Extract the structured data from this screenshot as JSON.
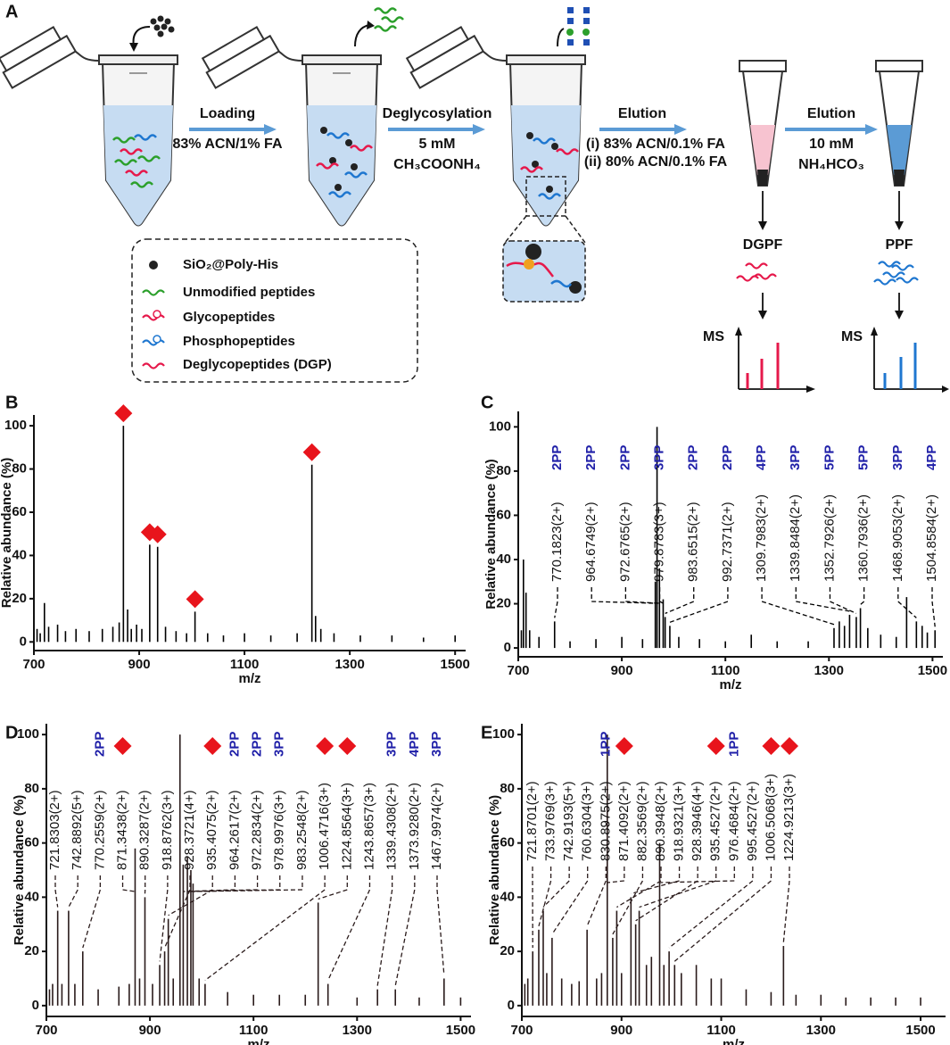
{
  "panel_a": {
    "label": "A",
    "steps": [
      {
        "title": "Loading",
        "lines": [
          "83% ACN/1% FA"
        ]
      },
      {
        "title": "Deglycosylation",
        "lines": [
          "5 mM",
          "CH₃COONH₄"
        ]
      },
      {
        "title": "Elution",
        "lines": [
          "(i) 83% ACN/0.1% FA",
          "(ii) 80% ACN/0.1% FA"
        ]
      },
      {
        "title": "Elution",
        "lines": [
          "10 mM",
          "NH₄HCO₃"
        ]
      }
    ],
    "outputs": [
      {
        "name": "DGPF",
        "axis": "MS"
      },
      {
        "name": "PPF",
        "axis": "MS"
      }
    ],
    "legend": [
      "SiO₂@Poly-His",
      "Unmodified peptides",
      "Glycopeptides",
      "Phosphopeptides",
      "Deglycopeptides (DGP)"
    ]
  },
  "chart_data": [
    {
      "type": "stem",
      "panel": "B",
      "xlabel": "m/z",
      "ylabel": "Relative abundance (%)",
      "xlim": [
        700,
        1520
      ],
      "ylim": [
        -4,
        105
      ],
      "xticks": [
        700,
        900,
        1100,
        1300,
        1500
      ],
      "yticks": [
        0,
        20,
        40,
        60,
        80,
        100
      ],
      "color": "#000000",
      "marker_color": "#e8141c",
      "tag_color": "#1f1fa8",
      "peaks": [
        {
          "x": 706,
          "value": 6
        },
        {
          "x": 712,
          "value": 4
        },
        {
          "x": 720,
          "value": 18
        },
        {
          "x": 728,
          "value": 7
        },
        {
          "x": 745,
          "value": 8
        },
        {
          "x": 760,
          "value": 5
        },
        {
          "x": 780,
          "value": 6
        },
        {
          "x": 805,
          "value": 5
        },
        {
          "x": 830,
          "value": 6
        },
        {
          "x": 850,
          "value": 7
        },
        {
          "x": 862,
          "value": 9
        },
        {
          "x": 870,
          "value": 100,
          "marker": "diamond"
        },
        {
          "x": 878,
          "value": 15
        },
        {
          "x": 885,
          "value": 6
        },
        {
          "x": 895,
          "value": 8
        },
        {
          "x": 905,
          "value": 6
        },
        {
          "x": 920,
          "value": 45,
          "marker": "diamond"
        },
        {
          "x": 935,
          "value": 44,
          "marker": "diamond"
        },
        {
          "x": 950,
          "value": 7
        },
        {
          "x": 970,
          "value": 5
        },
        {
          "x": 990,
          "value": 4
        },
        {
          "x": 1006,
          "value": 14,
          "marker": "diamond"
        },
        {
          "x": 1030,
          "value": 4
        },
        {
          "x": 1060,
          "value": 3
        },
        {
          "x": 1100,
          "value": 4
        },
        {
          "x": 1150,
          "value": 3
        },
        {
          "x": 1200,
          "value": 4
        },
        {
          "x": 1228,
          "value": 82,
          "marker": "diamond"
        },
        {
          "x": 1235,
          "value": 12
        },
        {
          "x": 1245,
          "value": 6
        },
        {
          "x": 1270,
          "value": 4
        },
        {
          "x": 1320,
          "value": 3
        },
        {
          "x": 1380,
          "value": 3
        },
        {
          "x": 1440,
          "value": 2
        },
        {
          "x": 1500,
          "value": 3
        }
      ]
    },
    {
      "type": "stem",
      "panel": "C",
      "xlabel": "m/z",
      "ylabel": "Relative abundance (%)",
      "xlim": [
        700,
        1520
      ],
      "ylim": [
        -4,
        107
      ],
      "xticks": [
        700,
        900,
        1100,
        1300,
        1500
      ],
      "yticks": [
        0,
        20,
        40,
        60,
        80,
        100
      ],
      "color": "#000000",
      "marker_color": "#e8141c",
      "tag_color": "#1f1fa8",
      "peaks": [
        {
          "x": 706,
          "value": 8
        },
        {
          "x": 710,
          "value": 40
        },
        {
          "x": 715,
          "value": 25
        },
        {
          "x": 722,
          "value": 8
        },
        {
          "x": 740,
          "value": 5
        },
        {
          "x": 770.1823,
          "value": 12,
          "label": "770.1823(2+)",
          "tag": "2PP"
        },
        {
          "x": 800,
          "value": 3
        },
        {
          "x": 850,
          "value": 4
        },
        {
          "x": 900,
          "value": 5
        },
        {
          "x": 940,
          "value": 4
        },
        {
          "x": 964.6749,
          "value": 30,
          "label": "964.6749(2+)",
          "tag": "2PP"
        },
        {
          "x": 968,
          "value": 100
        },
        {
          "x": 972.6765,
          "value": 36,
          "label": "972.6765(2+)",
          "tag": "2PP"
        },
        {
          "x": 979.8783,
          "value": 22,
          "label": "979.8783(3+)",
          "tag": "3PP"
        },
        {
          "x": 983.6515,
          "value": 14,
          "label": "983.6515(2+)",
          "tag": "2PP"
        },
        {
          "x": 992.7371,
          "value": 10,
          "label": "992.7371(2+)",
          "tag": "2PP"
        },
        {
          "x": 1010,
          "value": 5
        },
        {
          "x": 1050,
          "value": 4
        },
        {
          "x": 1100,
          "value": 3
        },
        {
          "x": 1150,
          "value": 6
        },
        {
          "x": 1200,
          "value": 3
        },
        {
          "x": 1260,
          "value": 3
        },
        {
          "x": 1309.7983,
          "value": 9,
          "label": "1309.7983(2+)",
          "tag": "4PP"
        },
        {
          "x": 1320,
          "value": 12
        },
        {
          "x": 1330,
          "value": 10
        },
        {
          "x": 1339.8484,
          "value": 15,
          "label": "1339.8484(2+)",
          "tag": "3PP"
        },
        {
          "x": 1352.7926,
          "value": 14,
          "label": "1352.7926(2+)",
          "tag": "5PP"
        },
        {
          "x": 1360.7936,
          "value": 18,
          "label": "1360.7936(2+)",
          "tag": "5PP"
        },
        {
          "x": 1375,
          "value": 9
        },
        {
          "x": 1400,
          "value": 6
        },
        {
          "x": 1430,
          "value": 5
        },
        {
          "x": 1450,
          "value": 23
        },
        {
          "x": 1468.9053,
          "value": 12,
          "label": "1468.9053(2+)",
          "tag": "3PP"
        },
        {
          "x": 1480,
          "value": 10
        },
        {
          "x": 1490,
          "value": 7
        },
        {
          "x": 1504.8584,
          "value": 8,
          "label": "1504.8584(2+)",
          "tag": "4PP"
        }
      ]
    },
    {
      "type": "stem",
      "panel": "D",
      "xlabel": "m/z",
      "ylabel": "Relative abundance (%)",
      "xlim": [
        700,
        1520
      ],
      "ylim": [
        -4,
        104
      ],
      "xticks": [
        700,
        900,
        1100,
        1300,
        1500
      ],
      "yticks": [
        0,
        20,
        40,
        60,
        80,
        100
      ],
      "color": "#2a1b1b",
      "marker_color": "#e8141c",
      "tag_color": "#1f1fa8",
      "peaks": [
        {
          "x": 706,
          "value": 6
        },
        {
          "x": 712,
          "value": 8
        },
        {
          "x": 721.8303,
          "value": 35,
          "label": "721.8303(2+)"
        },
        {
          "x": 730,
          "value": 8
        },
        {
          "x": 742.8892,
          "value": 35,
          "label": "742.8892(5+)"
        },
        {
          "x": 755,
          "value": 8
        },
        {
          "x": 770.2559,
          "value": 20,
          "label": "770.2559(2+)",
          "tag": "2PP"
        },
        {
          "x": 800,
          "value": 6
        },
        {
          "x": 840,
          "value": 7
        },
        {
          "x": 860,
          "value": 8
        },
        {
          "x": 871.3438,
          "value": 58,
          "label": "871.3438(2+)",
          "marker": "diamond"
        },
        {
          "x": 880,
          "value": 10
        },
        {
          "x": 890.3287,
          "value": 40,
          "label": "890.3287(2+)"
        },
        {
          "x": 905,
          "value": 8
        },
        {
          "x": 918.8762,
          "value": 15,
          "label": "918.8762(3+)"
        },
        {
          "x": 928.3721,
          "value": 20,
          "label": "928.3721(4+)"
        },
        {
          "x": 935.4075,
          "value": 32,
          "label": "935.4075(2+)",
          "marker": "diamond"
        },
        {
          "x": 945,
          "value": 10
        },
        {
          "x": 958,
          "value": 100
        },
        {
          "x": 964.2617,
          "value": 52,
          "label": "964.2617(2+)",
          "tag": "2PP"
        },
        {
          "x": 972.2834,
          "value": 55,
          "label": "972.2834(2+)",
          "tag": "2PP"
        },
        {
          "x": 978.9976,
          "value": 50,
          "label": "978.9976(3+)",
          "tag": "3PP"
        },
        {
          "x": 983.2548,
          "value": 45,
          "label": "983.2548(2+)"
        },
        {
          "x": 995,
          "value": 10
        },
        {
          "x": 1006.4716,
          "value": 8,
          "label": "1006.4716(3+)",
          "marker": "diamond"
        },
        {
          "x": 1050,
          "value": 5
        },
        {
          "x": 1100,
          "value": 4
        },
        {
          "x": 1150,
          "value": 4
        },
        {
          "x": 1200,
          "value": 4
        },
        {
          "x": 1224.8564,
          "value": 38,
          "label": "1224.8564(3+)",
          "marker": "diamond"
        },
        {
          "x": 1243.8657,
          "value": 8,
          "label": "1243.8657(3+)"
        },
        {
          "x": 1300,
          "value": 3
        },
        {
          "x": 1339.4308,
          "value": 6,
          "label": "1339.4308(2+)",
          "tag": "3PP"
        },
        {
          "x": 1373.928,
          "value": 6,
          "label": "1373.9280(2+)",
          "tag": "4PP"
        },
        {
          "x": 1420,
          "value": 3
        },
        {
          "x": 1467.9974,
          "value": 10,
          "label": "1467.9974(2+)",
          "tag": "3PP"
        },
        {
          "x": 1500,
          "value": 3
        }
      ]
    },
    {
      "type": "stem",
      "panel": "E",
      "xlabel": "m/z",
      "ylabel": "Relative abundance (%)",
      "xlim": [
        700,
        1550
      ],
      "ylim": [
        -4,
        104
      ],
      "xticks": [
        700,
        900,
        1100,
        1300,
        1500
      ],
      "yticks": [
        0,
        20,
        40,
        60,
        80,
        100
      ],
      "color": "#2a1b1b",
      "marker_color": "#e8141c",
      "tag_color": "#1f1fa8",
      "peaks": [
        {
          "x": 706,
          "value": 8
        },
        {
          "x": 712,
          "value": 10
        },
        {
          "x": 721.8701,
          "value": 20,
          "label": "721.8701(2+)"
        },
        {
          "x": 733.9769,
          "value": 28,
          "label": "733.9769(3+)"
        },
        {
          "x": 742.9193,
          "value": 35,
          "label": "742.9193(5+)"
        },
        {
          "x": 750,
          "value": 12
        },
        {
          "x": 760.6304,
          "value": 25,
          "label": "760.6304(3+)"
        },
        {
          "x": 780,
          "value": 10
        },
        {
          "x": 800,
          "value": 8
        },
        {
          "x": 815,
          "value": 9
        },
        {
          "x": 830.8975,
          "value": 28,
          "label": "830.8975(2+)",
          "tag": "1PP"
        },
        {
          "x": 850,
          "value": 10
        },
        {
          "x": 860,
          "value": 12
        },
        {
          "x": 871.4092,
          "value": 100,
          "label": "871.4092(2+)",
          "marker": "diamond"
        },
        {
          "x": 882.3569,
          "value": 25,
          "label": "882.3569(2+)"
        },
        {
          "x": 890.3948,
          "value": 35,
          "label": "890.3948(2+)"
        },
        {
          "x": 900,
          "value": 12
        },
        {
          "x": 918.9321,
          "value": 40,
          "label": "918.9321(3+)"
        },
        {
          "x": 928.3946,
          "value": 30,
          "label": "928.3946(4+)"
        },
        {
          "x": 935.4527,
          "value": 35,
          "label": "935.4527(2+)",
          "marker": "diamond"
        },
        {
          "x": 950,
          "value": 15
        },
        {
          "x": 960,
          "value": 18
        },
        {
          "x": 976.4684,
          "value": 60,
          "label": "976.4684(2+)",
          "tag": "1PP"
        },
        {
          "x": 985,
          "value": 15
        },
        {
          "x": 995.4527,
          "value": 20,
          "label": "995.4527(2+)"
        },
        {
          "x": 1006.5068,
          "value": 15,
          "label": "1006.5068(3+)",
          "marker": "diamond"
        },
        {
          "x": 1020,
          "value": 12
        },
        {
          "x": 1050,
          "value": 15
        },
        {
          "x": 1080,
          "value": 10
        },
        {
          "x": 1100,
          "value": 10
        },
        {
          "x": 1150,
          "value": 6
        },
        {
          "x": 1200,
          "value": 5
        },
        {
          "x": 1224.9213,
          "value": 22,
          "label": "1224.9213(3+)",
          "marker": "diamond"
        },
        {
          "x": 1250,
          "value": 4
        },
        {
          "x": 1300,
          "value": 4
        },
        {
          "x": 1350,
          "value": 3
        },
        {
          "x": 1400,
          "value": 3
        },
        {
          "x": 1450,
          "value": 3
        },
        {
          "x": 1500,
          "value": 3
        }
      ]
    }
  ]
}
